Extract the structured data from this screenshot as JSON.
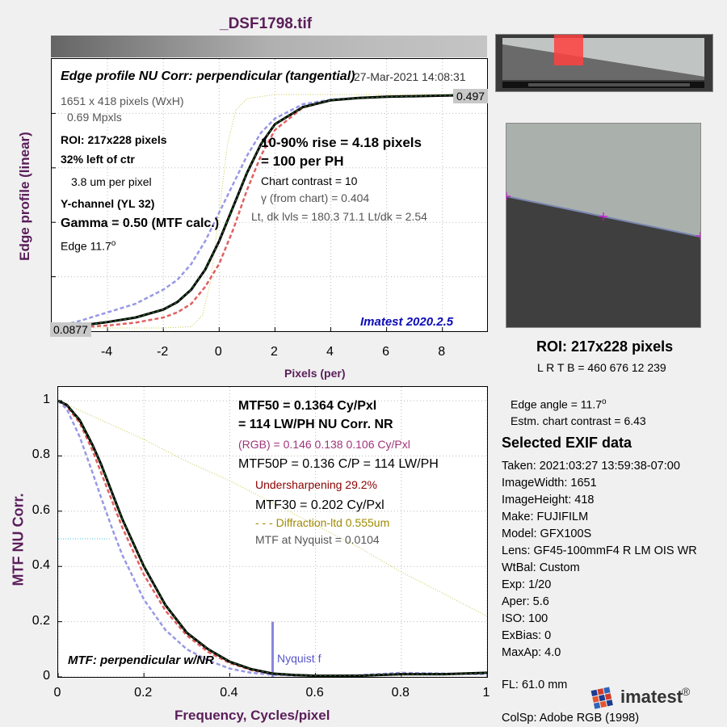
{
  "page_title": "_DSF1798.tif",
  "colors": {
    "title": "#5a1e5a",
    "axis_label": "#5a1e5a",
    "imatest_version": "#0b0bb8",
    "rgb_line": "#a0347a",
    "undersharpening": "#8b0000",
    "diffraction": "#a08a00",
    "marker": "#e600e6",
    "red_curve": "#e06060",
    "blue_curve": "#9898e6",
    "green_curve": "#3a8c3a",
    "diff_curve": "#c8c850",
    "nyquist_bar": "#8888dd"
  },
  "edge_panel": {
    "title": "Edge profile  NU Corr: perpendicular (tangential)",
    "timestamp": "27-Mar-2021 14:08:31",
    "info": {
      "size": "1651 x 418 pixels (WxH)",
      "mpxls": "0.69 Mpxls",
      "roi": "ROI:  217x228 pixels",
      "offset": "32% left of ctr",
      "pixel": "3.8 um per pixel",
      "channel": "Y-channel  (YL 32)",
      "gamma": "Gamma = 0.50 (MTF calc.)",
      "edge_text": "Edge   11.7",
      "edge_deg": "o"
    },
    "rise": "10-90% rise = 4.18 pixels",
    "per_ph": "=    100 per PH",
    "chart_contrast": "Chart contrast = 10",
    "gamma_chart": "γ (from chart) = 0.404",
    "levels": "Lt, dk lvls = 180.3  71.1  Lt/dk = 2.54",
    "imatest_version": "Imatest 2020.2.5",
    "top_value": "0.497",
    "bottom_value": "0.0877",
    "ylabel": "Edge profile (linear)",
    "xlabel": "Pixels (per)"
  },
  "mtf_panel": {
    "mtf50": "MTF50 = 0.1364 Cy/Pxl",
    "lwph": "=  114 LW/PH  NU Corr.  NR",
    "rgb": "(RGB) = 0.146  0.138  0.106 Cy/Pxl",
    "mtf50p": "MTF50P = 0.136 C/P = 114 LW/PH",
    "undersharpening": "Undersharpening 29.2%",
    "mtf30": "MTF30 = 0.202 Cy/Pxl",
    "diffraction": "- - - Diffraction-ltd  0.555um",
    "nyquist_mtf": "MTF at Nyquist = 0.0104",
    "caption": "MTF: perpendicular w/NR",
    "nyquist_label": "Nyquist f",
    "ylabel": "MTF  NU Corr.",
    "xlabel": "Frequency, Cycles/pixel"
  },
  "right_panel": {
    "roi_title": "ROI:  217x228 pixels",
    "roi_coords": "L R  T B = 460 676  12 239",
    "edge_angle": "Edge angle = 11.7",
    "edge_angle_deg": "o",
    "contrast": "Estm. chart contrast = 6.43",
    "exif_title": "Selected EXIF data",
    "exif": [
      "Taken: 2021:03:27 13:59:38-07:00",
      "ImageWidth:  1651",
      "ImageHeight:  418",
      "Make:  FUJIFILM",
      "Model:  GFX100S",
      "Lens:  GF45-100mmF4 R LM OIS WR",
      "WtBal:  Custom",
      "Exp:    1/20",
      "Aper:   5.6",
      "ISO:    100",
      "ExBias:  0",
      "MaxAp:  4.0"
    ],
    "fl": "FL:     61.0 mm",
    "colsp": "ColSp:  Adobe RGB (1998)",
    "logo_text": "imatest",
    "logo_mark": "®"
  },
  "chart_data": [
    {
      "type": "line",
      "xlabel": "Pixels (per)",
      "ylabel": "Edge profile (linear)",
      "xlim": [
        -6,
        9.6
      ],
      "xticks": [
        -4,
        -2,
        0,
        2,
        4,
        6,
        8
      ],
      "ylim": [
        0.0877,
        0.497
      ],
      "grid": true,
      "series": [
        {
          "x": [
            -6,
            -5,
            -4,
            -3,
            -2,
            -1.5,
            -1,
            -0.5,
            0,
            0.5,
            1,
            1.5,
            2,
            3,
            4,
            5,
            6,
            7,
            8,
            9,
            9.6
          ],
          "y": [
            0.0877,
            0.092,
            0.098,
            0.106,
            0.12,
            0.133,
            0.155,
            0.19,
            0.24,
            0.3,
            0.36,
            0.41,
            0.445,
            0.475,
            0.487,
            0.491,
            0.493,
            0.494,
            0.495,
            0.496,
            0.497
          ]
        },
        {
          "x": [
            -6,
            -5,
            -4,
            -3,
            -2,
            -1.5,
            -1,
            -0.5,
            0,
            0.5,
            1,
            1.5,
            2,
            3,
            4,
            5,
            6,
            7,
            8,
            9,
            9.6
          ],
          "y": [
            0.0877,
            0.089,
            0.092,
            0.097,
            0.106,
            0.115,
            0.13,
            0.16,
            0.2,
            0.26,
            0.33,
            0.39,
            0.435,
            0.474,
            0.487,
            0.491,
            0.493,
            0.494,
            0.495,
            0.496,
            0.497
          ]
        },
        {
          "x": [
            -6,
            -5,
            -4,
            -3,
            -2,
            -1.5,
            -1,
            -0.5,
            0,
            0.5,
            1,
            1.5,
            2,
            3,
            4,
            5,
            6,
            7,
            8,
            9,
            9.6
          ],
          "y": [
            0.0877,
            0.1,
            0.115,
            0.13,
            0.155,
            0.172,
            0.2,
            0.24,
            0.29,
            0.34,
            0.39,
            0.43,
            0.455,
            0.48,
            0.488,
            0.491,
            0.493,
            0.494,
            0.495,
            0.496,
            0.497
          ]
        },
        {
          "x": [
            -6,
            -2,
            -1,
            -0.6,
            -0.3,
            0,
            0.3,
            0.6,
            1,
            2,
            9.6
          ],
          "y": [
            0.0877,
            0.0877,
            0.09,
            0.11,
            0.17,
            0.29,
            0.41,
            0.47,
            0.49,
            0.497,
            0.497
          ]
        }
      ]
    },
    {
      "type": "line",
      "xlabel": "Frequency, Cycles/pixel",
      "ylabel": "MTF  NU Corr.",
      "xlim": [
        0,
        1
      ],
      "ylim": [
        0,
        1.05
      ],
      "xticks": [
        0,
        0.2,
        0.4,
        0.6,
        0.8,
        1
      ],
      "yticks": [
        0,
        0.2,
        0.4,
        0.6,
        0.8,
        1
      ],
      "grid": true,
      "nyquist": 0.5,
      "series": [
        {
          "x": [
            0,
            0.02,
            0.05,
            0.08,
            0.1,
            0.13,
            0.15,
            0.2,
            0.25,
            0.3,
            0.35,
            0.4,
            0.45,
            0.5,
            0.55,
            0.6,
            0.7,
            0.8,
            0.9,
            1.0
          ],
          "y": [
            1,
            0.98,
            0.92,
            0.82,
            0.74,
            0.62,
            0.54,
            0.37,
            0.24,
            0.15,
            0.09,
            0.05,
            0.025,
            0.01,
            0.006,
            0.004,
            0.004,
            0.01,
            0.01,
            0.015
          ]
        },
        {
          "x": [
            0,
            0.02,
            0.05,
            0.08,
            0.1,
            0.13,
            0.15,
            0.2,
            0.25,
            0.3,
            0.35,
            0.4,
            0.45,
            0.5,
            0.55,
            0.6,
            0.7,
            0.8,
            0.9,
            1.0
          ],
          "y": [
            1,
            0.985,
            0.93,
            0.84,
            0.77,
            0.65,
            0.57,
            0.4,
            0.26,
            0.16,
            0.1,
            0.055,
            0.028,
            0.012,
            0.007,
            0.004,
            0.004,
            0.01,
            0.01,
            0.015
          ]
        },
        {
          "x": [
            0,
            0.02,
            0.05,
            0.08,
            0.1,
            0.13,
            0.15,
            0.2,
            0.25,
            0.3,
            0.35,
            0.4,
            0.45,
            0.5,
            0.55,
            0.6,
            0.7,
            0.8,
            0.9,
            1.0
          ],
          "y": [
            1,
            0.97,
            0.87,
            0.74,
            0.65,
            0.52,
            0.44,
            0.28,
            0.17,
            0.1,
            0.06,
            0.03,
            0.015,
            0.008,
            0.005,
            0.004,
            0.006,
            0.015,
            0.012,
            0.01
          ]
        },
        {
          "x": [
            0,
            0.1,
            0.2,
            0.3,
            0.4,
            0.5,
            0.6,
            0.7,
            0.8,
            0.9,
            1.0
          ],
          "y": [
            1,
            0.93,
            0.86,
            0.78,
            0.71,
            0.63,
            0.55,
            0.47,
            0.38,
            0.3,
            0.22
          ]
        }
      ]
    }
  ]
}
